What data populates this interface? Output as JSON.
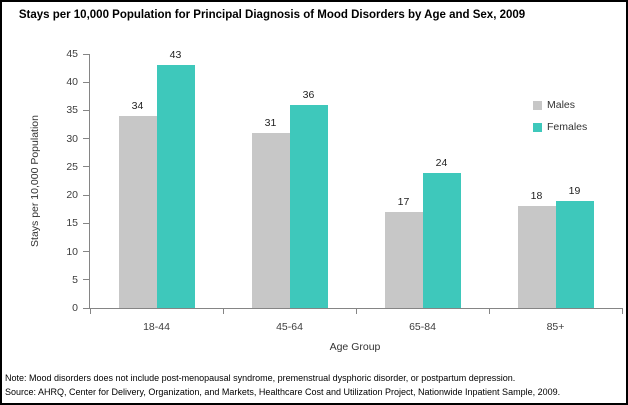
{
  "chart_data": {
    "type": "bar",
    "title": "Stays per 10,000 Population for Principal Diagnosis of Mood Disorders by Age and Sex, 2009",
    "categories": [
      "18-44",
      "45-64",
      "65-84",
      "85+"
    ],
    "series": [
      {
        "name": "Males",
        "values": [
          34,
          31,
          17,
          18
        ],
        "color": "#c7c7c7",
        "fill_pattern": "white-dots"
      },
      {
        "name": "Females",
        "values": [
          43,
          36,
          24,
          19
        ],
        "color": "#3ec8bb",
        "fill_pattern": "solid"
      }
    ],
    "xlabel": "Age Group",
    "ylabel": "Stays per 10,000 Population",
    "ylim": [
      0,
      45
    ],
    "ytick_step": 5,
    "yticks": [
      0,
      5,
      10,
      15,
      20,
      25,
      30,
      35,
      40,
      45
    ],
    "grid": false,
    "data_labels": true,
    "legend_position": "upper-right"
  },
  "footnotes": {
    "note": "Note: Mood disorders does not include post-menopausal syndrome, premenstrual dysphoric disorder, or postpartum depression.",
    "source": "Source: AHRQ, Center for Delivery, Organization, and Markets, Healthcare Cost and Utilization Project, Nationwide Inpatient Sample, 2009."
  },
  "colors": {
    "males_bar": "#c7c7c7",
    "females_bar": "#3ec8bb",
    "axis": "#858585",
    "text": "#3d3d3d"
  }
}
